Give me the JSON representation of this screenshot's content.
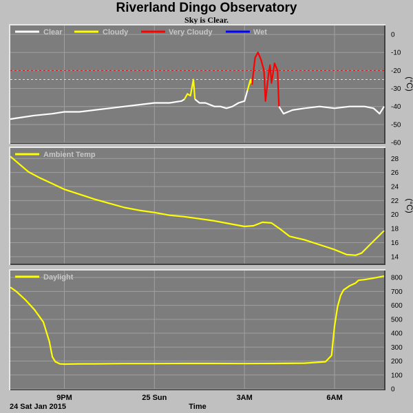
{
  "header": {
    "title": "Riverland Dingo Observatory",
    "subtitle": "Sky is Clear."
  },
  "footer": {
    "date_label": "24 Sat Jan 2015",
    "x_axis_label": "Time"
  },
  "colors": {
    "background": "#c0c0c0",
    "plot_bg": "#7d7d7d",
    "grid": "#a0a0a0",
    "clear": "#ffffff",
    "cloudy": "#ffff00",
    "very_cloudy": "#ff0000",
    "wet": "#0000ff"
  },
  "x_ticks": [
    "9PM",
    "25 Sun",
    "3AM",
    "6AM"
  ],
  "chart_data": [
    {
      "type": "line",
      "name": "sky-temperature",
      "ylabel": "(°C)",
      "ylim": [
        -60,
        5
      ],
      "yticks": [
        0,
        -10,
        -20,
        -30,
        -40,
        -50,
        -60
      ],
      "xlim": [
        19.2,
        31.65
      ],
      "thresholds": [
        {
          "value": -20,
          "color": "#ff0000"
        },
        {
          "value": -25,
          "color": "#ffff00"
        }
      ],
      "legend": [
        "Clear",
        "Cloudy",
        "Very Cloudy",
        "Wet"
      ],
      "series": [
        {
          "name": "Clear",
          "color": "#ffffff",
          "x": [
            19.2,
            19.6,
            20.0,
            20.6,
            21.0,
            21.5,
            22.0,
            22.5,
            23.0,
            23.5,
            24.0,
            24.5,
            24.9,
            25.0
          ],
          "y": [
            -47,
            -46,
            -45,
            -44,
            -43,
            -43,
            -42,
            -41,
            -40,
            -39,
            -38,
            -38,
            -37,
            -36
          ]
        },
        {
          "name": "Cloudy",
          "color": "#ffff00",
          "x": [
            25.0,
            25.1,
            25.2,
            25.3,
            25.35
          ],
          "y": [
            -36,
            -33,
            -34,
            -25,
            -36
          ]
        },
        {
          "name": "Clear",
          "color": "#ffffff",
          "x": [
            25.35,
            25.5,
            25.7,
            26.0,
            26.2,
            26.4,
            26.6,
            26.8,
            27.0,
            27.1
          ],
          "y": [
            -36,
            -38,
            -38,
            -40,
            -40,
            -41,
            -40,
            -38,
            -37,
            -31
          ]
        },
        {
          "name": "Cloudy",
          "color": "#ffff00",
          "x": [
            27.1,
            27.2,
            27.25
          ],
          "y": [
            -31,
            -25,
            -28
          ]
        },
        {
          "name": "Very Cloudy",
          "color": "#ff0000",
          "x": [
            27.25,
            27.35,
            27.45,
            27.55,
            27.65,
            27.7,
            27.8,
            27.85,
            27.9,
            28.0,
            28.1,
            28.15
          ],
          "y": [
            -28,
            -13,
            -10,
            -14,
            -20,
            -37,
            -22,
            -17,
            -27,
            -16,
            -20,
            -40
          ]
        },
        {
          "name": "Clear",
          "color": "#ffffff",
          "x": [
            28.15,
            28.3,
            28.6,
            29.0,
            29.5,
            30.0,
            30.5,
            31.0,
            31.3,
            31.5,
            31.65
          ],
          "y": [
            -40,
            -44,
            -42,
            -41,
            -40,
            -41,
            -40,
            -40,
            -41,
            -44,
            -40
          ]
        }
      ]
    },
    {
      "type": "line",
      "name": "ambient-temperature",
      "ylabel": "(°C)",
      "ylim": [
        13,
        29.5
      ],
      "yticks": [
        28,
        26,
        24,
        22,
        20,
        18,
        16,
        14
      ],
      "xlim": [
        19.2,
        31.65
      ],
      "legend": [
        "Ambient Temp"
      ],
      "series": [
        {
          "name": "Ambient Temp",
          "color": "#ffff00",
          "x": [
            19.2,
            19.5,
            19.8,
            20.2,
            20.6,
            21.0,
            21.5,
            22.0,
            22.5,
            23.0,
            23.5,
            24.0,
            24.5,
            25.0,
            25.5,
            26.0,
            26.5,
            27.0,
            27.3,
            27.6,
            27.9,
            28.2,
            28.5,
            29.0,
            29.5,
            30.0,
            30.4,
            30.7,
            30.9,
            31.2,
            31.65
          ],
          "y": [
            28.3,
            27.2,
            26.1,
            25.2,
            24.4,
            23.6,
            22.9,
            22.2,
            21.6,
            21.0,
            20.6,
            20.3,
            19.9,
            19.7,
            19.4,
            19.1,
            18.7,
            18.3,
            18.4,
            18.9,
            18.8,
            17.9,
            16.9,
            16.4,
            15.7,
            15.0,
            14.3,
            14.2,
            14.5,
            15.8,
            17.7
          ]
        }
      ]
    },
    {
      "type": "line",
      "name": "daylight",
      "ylabel": "",
      "ylim": [
        0,
        850
      ],
      "yticks": [
        800,
        700,
        600,
        500,
        400,
        300,
        200,
        100,
        0
      ],
      "xlim": [
        19.2,
        31.65
      ],
      "legend": [
        "Daylight"
      ],
      "series": [
        {
          "name": "Daylight",
          "color": "#ffff00",
          "x": [
            19.2,
            19.4,
            19.7,
            20.0,
            20.3,
            20.5,
            20.6,
            20.7,
            20.85,
            21.0,
            21.5,
            22.0,
            23.0,
            24.0,
            25.0,
            26.0,
            27.0,
            28.0,
            29.0,
            29.7,
            29.9,
            30.0,
            30.1,
            30.2,
            30.3,
            30.5,
            30.7,
            30.8,
            31.0,
            31.3,
            31.65
          ],
          "y": [
            730,
            700,
            640,
            570,
            480,
            340,
            230,
            195,
            180,
            178,
            180,
            180,
            182,
            182,
            183,
            183,
            182,
            183,
            185,
            195,
            240,
            450,
            590,
            670,
            710,
            740,
            760,
            780,
            785,
            795,
            810
          ]
        }
      ]
    }
  ]
}
